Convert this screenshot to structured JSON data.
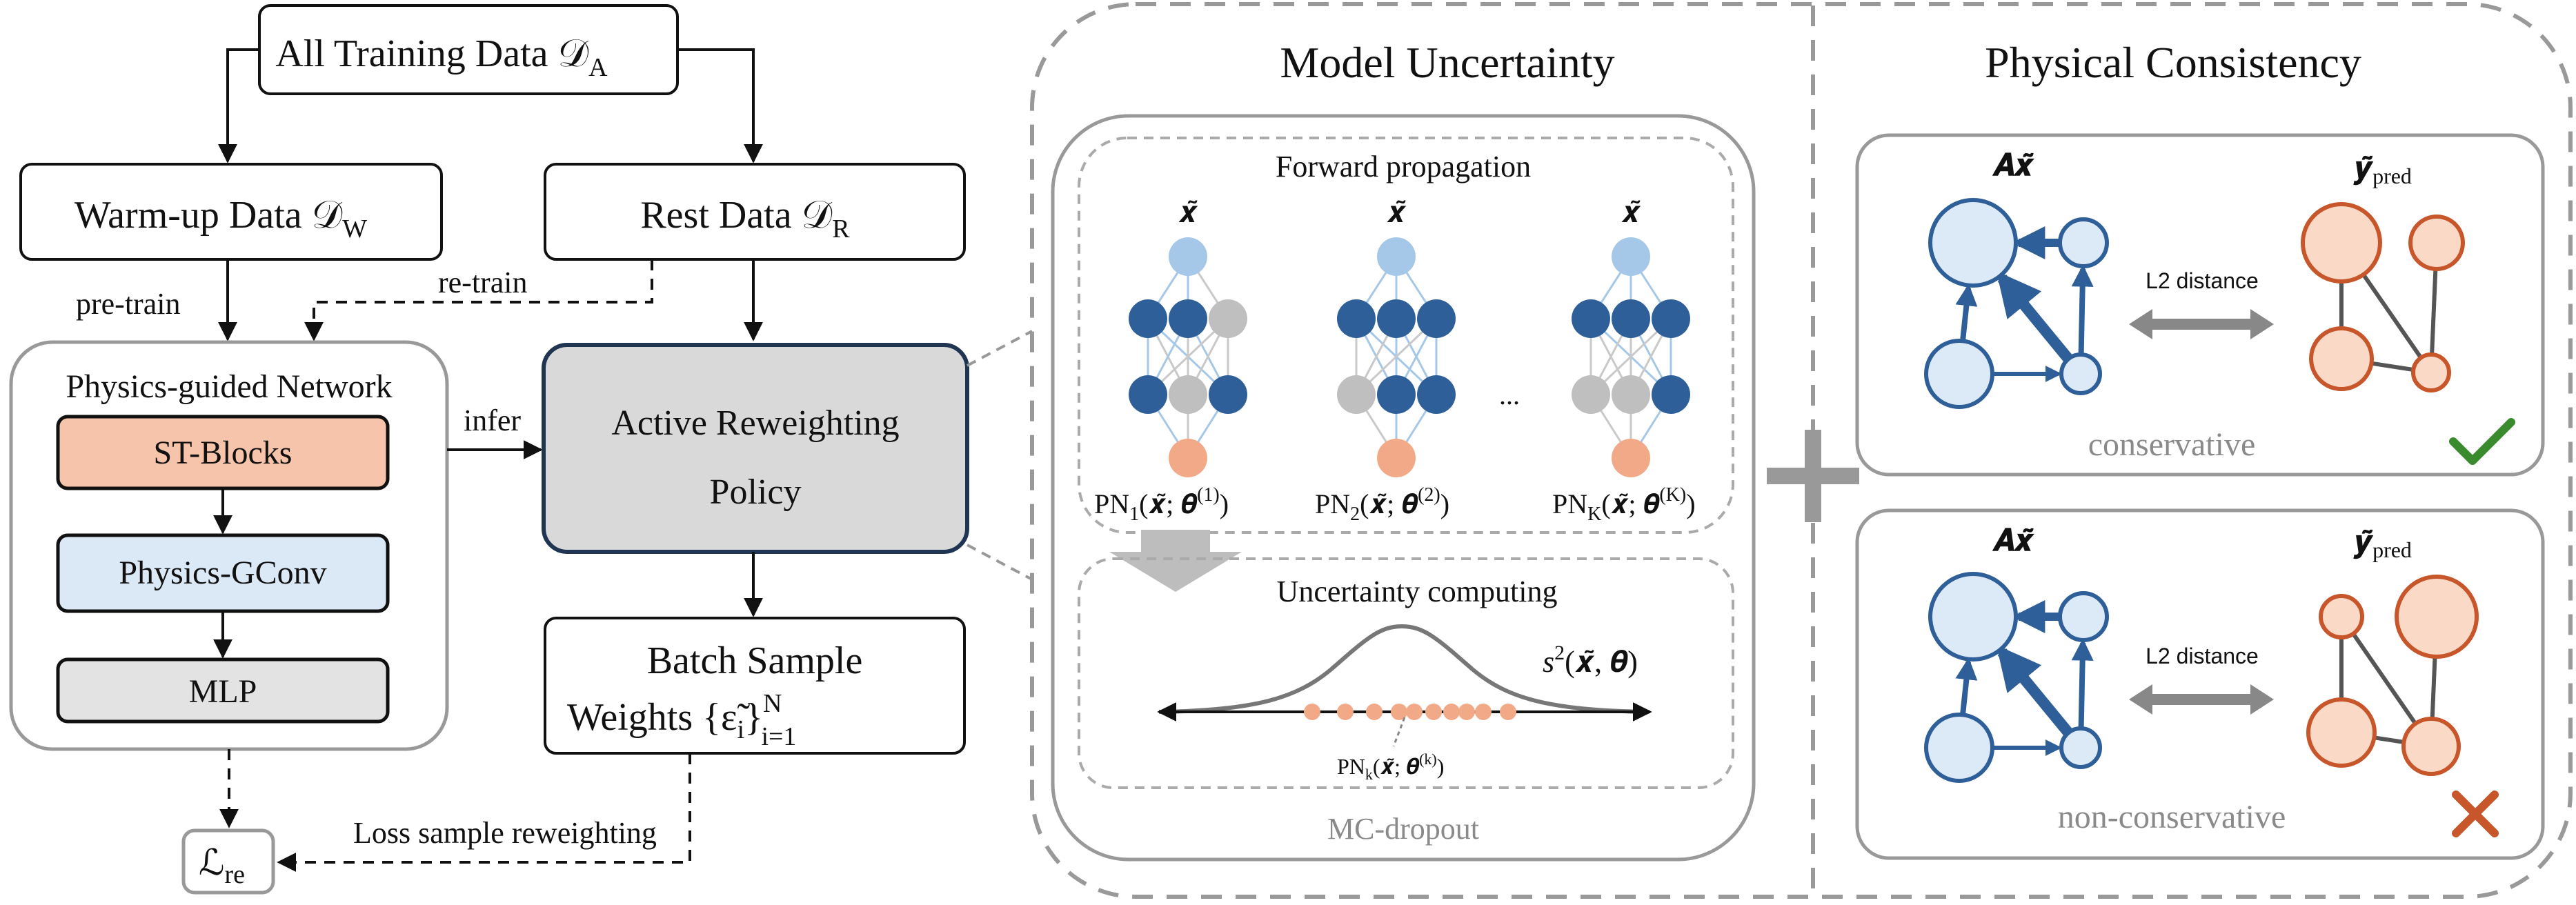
{
  "left": {
    "all_training": "All Training Data 𝒟",
    "all_training_sub": "A",
    "warmup": "Warm-up Data 𝒟",
    "warmup_sub": "W",
    "rest": "Rest Data 𝒟",
    "rest_sub": "R",
    "pretrain": "pre-train",
    "retrain": "re-train",
    "infer": "infer",
    "network_title": "Physics-guided Network",
    "st_blocks": "ST-Blocks",
    "physics_gconv": "Physics-GConv",
    "mlp": "MLP",
    "policy_line1": "Active Reweighting",
    "policy_line2": "Policy",
    "batch_line1": "Batch Sample",
    "batch_line2": "Weights {ε̃",
    "batch_sub_i": "i",
    "batch_close": "}",
    "batch_sup_N": "N",
    "batch_sub_range": "i=1",
    "loss_reweight": "Loss sample reweighting",
    "loss_symbol": "ℒ",
    "loss_sub": "re"
  },
  "middle": {
    "title": "Model Uncertainty",
    "forward": "Forward propagation",
    "x_tilde": "𝒙̃",
    "ellipsis": "...",
    "pn1": "PN",
    "pn1_sub": "1",
    "pn1_args": "(𝒙̃; 𝜽",
    "pn1_sup": "(1)",
    "pn2": "PN",
    "pn2_sub": "2",
    "pn2_args": "(𝒙̃; 𝜽",
    "pn2_sup": "(2)",
    "pnK": "PN",
    "pnK_sub": "K",
    "pnK_args": "(𝒙̃; 𝜽",
    "pnK_sup": "(K)",
    "close_paren": ")",
    "uncertainty": "Uncertainty computing",
    "s2": "s",
    "s2_sup": "2",
    "s2_args": "(𝒙̃, 𝜽)",
    "pnk": "PN",
    "pnk_sub": "k",
    "pnk_args": "(𝒙̃; 𝜽",
    "pnk_sup": "(k)",
    "mc_dropout": "MC-dropout"
  },
  "right": {
    "title": "Physical Consistency",
    "ax": "𝑨𝒙̃",
    "y_pred": "𝒚̃",
    "y_pred_sub": "pred",
    "l2": "L2 distance",
    "conservative": "conservative",
    "non_conservative": "non-conservative"
  },
  "colors": {
    "blue_dark": "#2f5f98",
    "blue_light": "#dce9f6",
    "blue_node": "#a6c8e8",
    "orange_node": "#f2a987",
    "orange_light": "#fbd9c7",
    "orange_stroke": "#c8562b",
    "st_block_fill": "#f5c4aa",
    "gconv_fill": "#dbe8f5",
    "mlp_fill": "#e3e3e3",
    "policy_fill": "#d9d9d9",
    "gray_node": "#bfbfbf",
    "check_green": "#3a8a2e",
    "cross_orange": "#c8562b"
  }
}
